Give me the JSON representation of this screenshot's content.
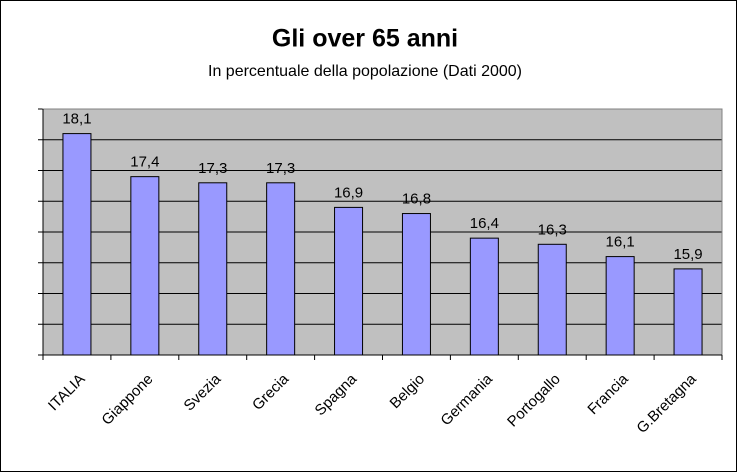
{
  "chart_data": {
    "type": "bar",
    "title": "Gli over 65 anni",
    "subtitle": "In percentuale della popolazione (Dati 2000)",
    "categories": [
      "ITALIA",
      "Giappone",
      "Svezia",
      "Grecia",
      "Spagna",
      "Belgio",
      "Germania",
      "Portogallo",
      "Francia",
      "G.Bretagna"
    ],
    "values": [
      18.1,
      17.4,
      17.3,
      17.3,
      16.9,
      16.8,
      16.4,
      16.3,
      16.1,
      15.9
    ],
    "value_labels": [
      "18,1",
      "17,4",
      "17,3",
      "17,3",
      "16,9",
      "16,8",
      "16,4",
      "16,3",
      "16,1",
      "15,9"
    ],
    "color": "#9999ff",
    "ylim": [
      14.5,
      18.5
    ],
    "yticks": [
      14.5,
      15,
      15.5,
      16,
      16.5,
      17,
      17.5,
      18,
      18.5
    ],
    "grid": true
  }
}
